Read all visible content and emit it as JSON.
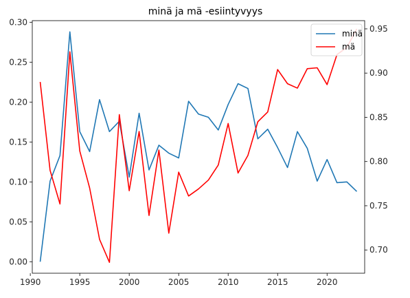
{
  "chart_data": {
    "type": "line",
    "title": "minä ja mä -esiintyvyys",
    "x": [
      1991,
      1992,
      1993,
      1994,
      1995,
      1996,
      1997,
      1998,
      1999,
      2000,
      2001,
      2002,
      2003,
      2004,
      2005,
      2006,
      2007,
      2008,
      2009,
      2010,
      2011,
      2012,
      2013,
      2014,
      2015,
      2016,
      2017,
      2018,
      2019,
      2020,
      2021,
      2022,
      2023
    ],
    "xlim": [
      1990.2,
      2023.8
    ],
    "xticks": [
      1990,
      1995,
      2000,
      2005,
      2010,
      2015,
      2020
    ],
    "series": [
      {
        "name": "minä",
        "axis": "left",
        "color": "#1f77b4",
        "values": [
          0.0,
          0.101,
          0.133,
          0.288,
          0.163,
          0.138,
          0.203,
          0.163,
          0.176,
          0.106,
          0.186,
          0.115,
          0.146,
          0.136,
          0.13,
          0.201,
          0.185,
          0.181,
          0.165,
          0.197,
          0.223,
          0.217,
          0.154,
          0.166,
          0.143,
          0.118,
          0.163,
          0.142,
          0.101,
          0.128,
          0.099,
          0.1,
          0.088
        ]
      },
      {
        "name": "mä",
        "axis": "right",
        "color": "#ff0000",
        "values": [
          0.89,
          0.79,
          0.752,
          0.924,
          0.812,
          0.77,
          0.712,
          0.686,
          0.853,
          0.767,
          0.834,
          0.739,
          0.813,
          0.719,
          0.788,
          0.761,
          0.769,
          0.779,
          0.796,
          0.843,
          0.787,
          0.807,
          0.845,
          0.856,
          0.904,
          0.888,
          0.883,
          0.905,
          0.906,
          0.887,
          0.921,
          0.929,
          0.95
        ]
      }
    ],
    "y_left": {
      "ylim": [
        -0.0144,
        0.302
      ],
      "ticks": [
        "0.00",
        "0.05",
        "0.10",
        "0.15",
        "0.20",
        "0.25",
        "0.30"
      ]
    },
    "y_right": {
      "ylim": [
        0.6737,
        0.9593
      ],
      "ticks": [
        "0.70",
        "0.75",
        "0.80",
        "0.85",
        "0.90",
        "0.95"
      ]
    },
    "legend": {
      "placement": "top-right",
      "entries": [
        "minä",
        "mä"
      ]
    },
    "grid": false
  }
}
